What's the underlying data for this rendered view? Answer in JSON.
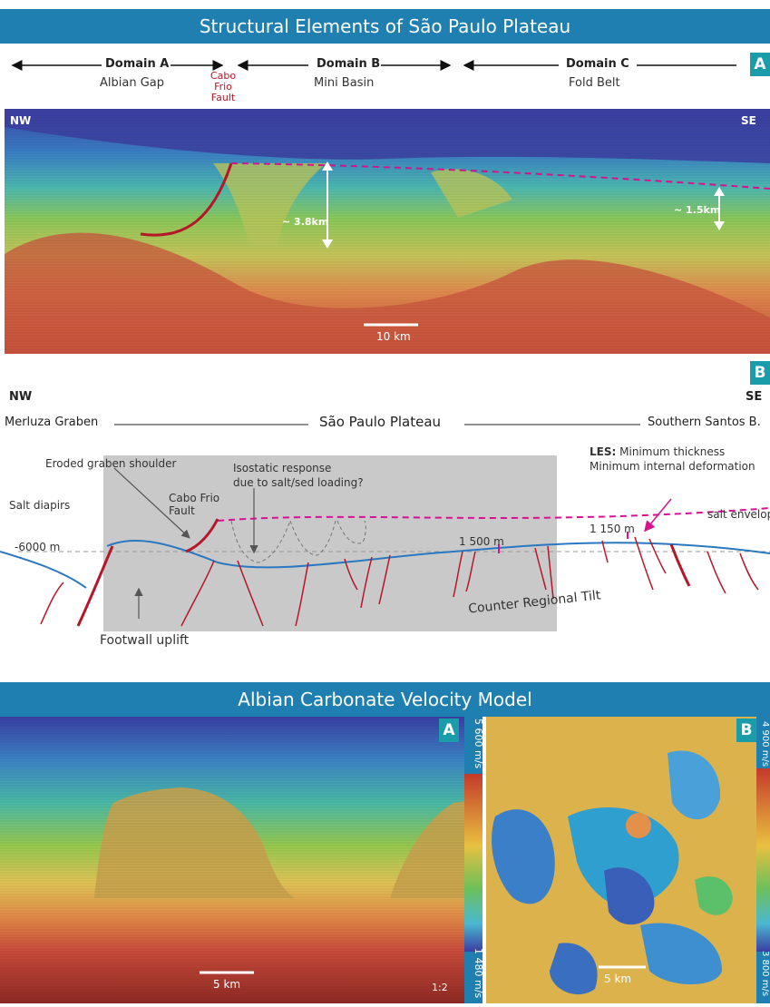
{
  "panel_a": {
    "title": "Structural Elements of São Paulo Plateau",
    "badge": "A",
    "domains": [
      {
        "title": "Domain A",
        "subtitle": "Albian Gap"
      },
      {
        "title": "Domain B",
        "subtitle": "Mini Basin"
      },
      {
        "title": "Domain C",
        "subtitle": "Fold Belt"
      }
    ],
    "fault_label_line1": "Cabo Frio",
    "fault_label_line2": "Fault",
    "nw": "NW",
    "se": "SE",
    "thickness_1": "~ 3.8km",
    "thickness_2": "~ 1.5km",
    "scale": "10 km"
  },
  "panel_b": {
    "badge": "B",
    "nw": "NW",
    "se": "SE",
    "region_left": "Merluza Graben",
    "region_mid": "São Paulo Plateau",
    "region_right": "Southern Santos B.",
    "eroded": "Eroded graben shoulder",
    "isostatic_1": "Isostatic response",
    "isostatic_2": "due to salt/sed loading?",
    "les_key": "LES:",
    "les_1": "Minimum thickness",
    "les_2": "Minimum internal deformation",
    "salt_diapirs": "Salt diapirs",
    "fault_1": "Cabo Frio",
    "fault_2": "Fault",
    "salt_envelope": "salt envelope",
    "depth": "-6000 m",
    "th_1500": "1 500 m",
    "th_1150": "1 150 m",
    "tilt": "Counter Regional Tilt",
    "footwall": "Footwall uplift"
  },
  "panel_c": {
    "title": "Albian Carbonate Velocity Model",
    "badge_a": "A",
    "badge_b": "B",
    "scale_a": "5 km",
    "ratio": "1:2",
    "vel_a_max": "5 600 m/s",
    "vel_a_min": "1 480 m/s",
    "scale_b": "5 km",
    "vel_b_max": "4 900 m/s",
    "vel_b_min": "3 800 m/s"
  },
  "colors": {
    "banner": "#1f7fb0",
    "badge": "#1a9da8",
    "fault": "#b5172a",
    "salt": "#d4148e",
    "horizon": "#2a78c0"
  }
}
